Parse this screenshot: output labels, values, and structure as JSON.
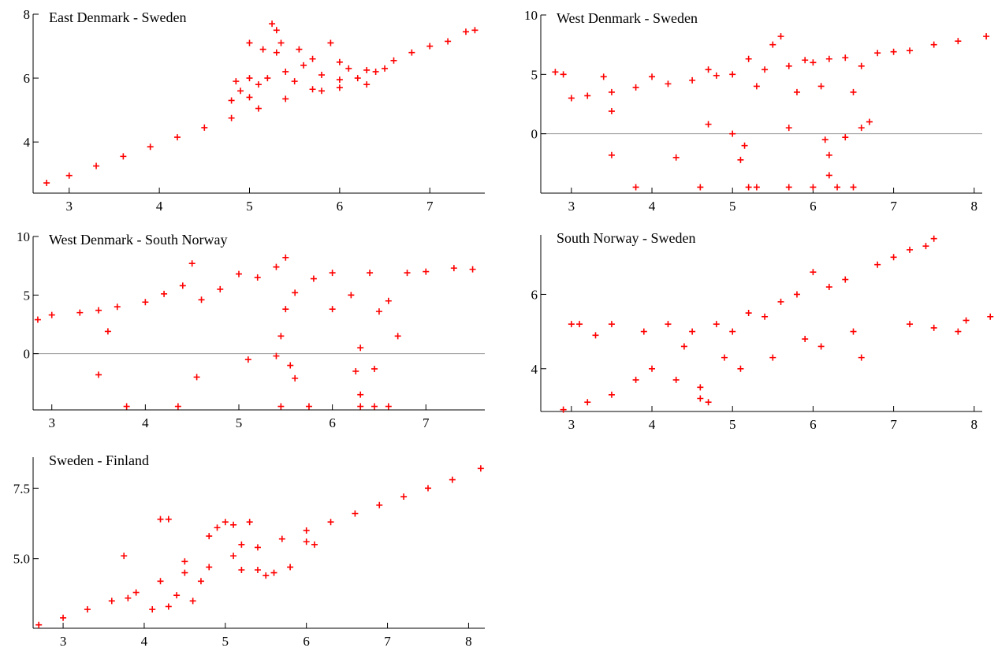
{
  "chart_data": [
    {
      "type": "scatter",
      "title": "East Denmark - Sweden",
      "color": "#ff0000",
      "x": [
        2.75,
        3.0,
        3.3,
        3.6,
        3.9,
        4.2,
        4.5,
        4.8,
        5.1,
        5.4,
        5.7,
        6.0,
        6.3,
        6.6,
        6.8,
        7.0,
        7.2,
        7.4,
        7.5,
        4.8,
        4.85,
        4.9,
        5.0,
        5.0,
        5.0,
        5.1,
        5.2,
        5.25,
        5.3,
        5.3,
        5.35,
        5.4,
        5.5,
        5.6,
        5.7,
        5.8,
        5.9,
        6.0,
        6.1,
        6.2,
        6.3,
        6.4,
        6.0,
        5.8,
        6.5,
        5.15,
        5.55
      ],
      "y": [
        2.72,
        2.95,
        3.25,
        3.55,
        3.85,
        4.15,
        4.45,
        4.75,
        5.05,
        5.35,
        5.65,
        5.95,
        6.25,
        6.55,
        6.8,
        7.0,
        7.15,
        7.45,
        7.5,
        5.3,
        5.9,
        5.6,
        6.0,
        5.4,
        7.1,
        5.8,
        6.0,
        7.7,
        7.5,
        6.8,
        7.1,
        6.2,
        5.9,
        6.4,
        6.6,
        6.1,
        7.1,
        6.5,
        6.3,
        6.0,
        5.8,
        6.2,
        5.7,
        5.6,
        6.3,
        6.9,
        6.9
      ],
      "xlim": [
        2.6,
        7.61
      ],
      "ylim": [
        2.4,
        8
      ],
      "xticks": [
        3,
        4,
        5,
        6,
        7
      ],
      "yticks": [
        4,
        6,
        8
      ]
    },
    {
      "type": "scatter",
      "title": "West Denmark - Sweden",
      "color": "#ff0000",
      "x": [
        2.8,
        2.9,
        3.0,
        3.2,
        3.4,
        3.5,
        3.8,
        4.0,
        4.2,
        4.5,
        4.7,
        4.8,
        5.0,
        5.2,
        5.3,
        5.4,
        5.5,
        5.6,
        5.7,
        5.8,
        5.9,
        6.0,
        6.1,
        6.2,
        6.4,
        6.5,
        6.6,
        6.7,
        6.8,
        7.0,
        7.2,
        7.5,
        7.8,
        8.15,
        3.5,
        4.3,
        5.15,
        5.1,
        4.7,
        5.7,
        6.15,
        6.2,
        6.4,
        3.8,
        4.6,
        5.2,
        5.3,
        5.7,
        6.0,
        6.2,
        6.3,
        6.5,
        3.5,
        5.0,
        6.6
      ],
      "y": [
        5.2,
        5.0,
        3.0,
        3.2,
        4.8,
        3.5,
        3.9,
        4.8,
        4.2,
        4.5,
        5.4,
        4.9,
        5.0,
        6.3,
        4.0,
        5.4,
        7.5,
        8.2,
        5.7,
        3.5,
        6.2,
        6.0,
        4.0,
        6.3,
        6.4,
        3.5,
        5.7,
        1.0,
        6.8,
        6.9,
        7.0,
        7.5,
        7.8,
        8.2,
        -1.8,
        -2.0,
        -1.0,
        -2.2,
        0.8,
        0.5,
        -0.5,
        -1.8,
        -0.3,
        -4.5,
        -4.5,
        -4.5,
        -4.5,
        -4.5,
        -4.5,
        -3.5,
        -4.5,
        -4.5,
        1.9,
        0.0,
        0.5
      ],
      "xlim": [
        2.62,
        8.1
      ],
      "ylim": [
        -5,
        10
      ],
      "xticks": [
        3,
        4,
        5,
        6,
        7,
        8
      ],
      "yticks": [
        0,
        5,
        10
      ],
      "reference_line": 0
    },
    {
      "type": "scatter",
      "title": "West Denmark - South Norway",
      "color": "#ff0000",
      "x": [
        2.85,
        3.0,
        3.3,
        3.5,
        3.6,
        3.7,
        4.0,
        4.2,
        4.4,
        4.5,
        4.6,
        4.8,
        5.0,
        5.2,
        5.4,
        5.5,
        5.5,
        5.6,
        5.8,
        6.0,
        6.0,
        6.2,
        6.3,
        6.4,
        6.5,
        6.6,
        6.7,
        6.8,
        7.0,
        7.3,
        7.5,
        3.5,
        4.55,
        5.1,
        5.4,
        5.45,
        5.6,
        5.55,
        6.25,
        6.3,
        6.45,
        3.8,
        4.35,
        5.45,
        5.75,
        6.3,
        6.45,
        6.6
      ],
      "y": [
        2.9,
        3.3,
        3.5,
        3.7,
        1.9,
        4.0,
        4.4,
        5.1,
        5.8,
        7.7,
        4.6,
        5.5,
        6.8,
        6.5,
        7.4,
        3.8,
        8.2,
        5.2,
        6.4,
        3.8,
        6.9,
        5.0,
        0.5,
        6.9,
        3.6,
        4.5,
        1.5,
        6.9,
        7.0,
        7.3,
        7.2,
        -1.8,
        -2.0,
        -0.5,
        -0.2,
        1.5,
        -2.1,
        -1.0,
        -1.5,
        -3.5,
        -1.3,
        -4.5,
        -4.5,
        -4.5,
        -4.5,
        -4.5,
        -4.5,
        -4.5
      ],
      "xlim": [
        2.8,
        7.63
      ],
      "ylim": [
        -4.8,
        10
      ],
      "xticks": [
        3,
        4,
        5,
        6,
        7
      ],
      "yticks": [
        0,
        5,
        10
      ],
      "reference_line": 0
    },
    {
      "type": "scatter",
      "title": "South Norway - Sweden",
      "color": "#ff0000",
      "x": [
        2.9,
        3.0,
        3.1,
        3.2,
        3.5,
        3.5,
        3.8,
        3.9,
        4.0,
        4.2,
        4.3,
        4.4,
        4.5,
        4.6,
        4.6,
        4.8,
        4.9,
        5.0,
        5.1,
        5.2,
        5.4,
        5.5,
        5.6,
        5.8,
        5.9,
        6.0,
        6.1,
        6.2,
        6.4,
        6.5,
        6.6,
        6.8,
        7.0,
        7.2,
        7.2,
        7.4,
        7.5,
        7.5,
        7.8,
        7.9,
        8.2,
        3.3,
        4.7
      ],
      "y": [
        2.9,
        5.2,
        5.2,
        3.1,
        5.2,
        3.3,
        3.7,
        5.0,
        4.0,
        5.2,
        3.7,
        4.6,
        5.0,
        3.5,
        3.2,
        5.2,
        4.3,
        5.0,
        4.0,
        5.5,
        5.4,
        4.3,
        5.8,
        6.0,
        4.8,
        6.6,
        4.6,
        6.2,
        6.4,
        5.0,
        4.3,
        6.8,
        7.0,
        5.2,
        7.2,
        7.3,
        7.5,
        5.1,
        5.0,
        5.3,
        5.4,
        4.9,
        3.1
      ],
      "xlim": [
        2.62,
        8.1
      ],
      "ylim": [
        2.85,
        7.6
      ],
      "xticks": [
        3,
        4,
        5,
        6,
        7,
        8
      ],
      "yticks": [
        4,
        6
      ]
    },
    {
      "type": "scatter",
      "title": "Sweden - Finland",
      "color": "#ff0000",
      "x": [
        2.7,
        3.0,
        3.3,
        3.6,
        3.9,
        4.2,
        4.5,
        4.8,
        5.1,
        5.4,
        5.7,
        6.0,
        6.3,
        6.6,
        6.9,
        7.2,
        7.5,
        7.8,
        8.15,
        3.75,
        4.2,
        4.3,
        3.8,
        4.1,
        4.3,
        4.5,
        4.6,
        4.8,
        4.9,
        5.0,
        5.1,
        5.2,
        5.3,
        5.4,
        5.5,
        5.6,
        5.8,
        6.0,
        6.1,
        5.2,
        4.4,
        4.7
      ],
      "y": [
        2.65,
        2.9,
        3.2,
        3.5,
        3.8,
        4.2,
        4.5,
        4.7,
        5.1,
        5.4,
        5.7,
        6.0,
        6.3,
        6.6,
        6.9,
        7.2,
        7.5,
        7.8,
        8.2,
        5.1,
        6.4,
        6.4,
        3.6,
        3.2,
        3.3,
        4.9,
        3.5,
        5.8,
        6.1,
        6.3,
        6.2,
        4.6,
        6.3,
        4.6,
        4.4,
        4.5,
        4.7,
        5.6,
        5.5,
        5.5,
        3.7,
        4.2
      ],
      "xlim": [
        2.63,
        8.2
      ],
      "ylim": [
        2.53,
        8.6
      ],
      "xticks": [
        3,
        4,
        5,
        6,
        7,
        8
      ],
      "yticks": [
        {
          "value": 5.0,
          "label": "5.0"
        },
        {
          "value": 7.5,
          "label": "7.5"
        }
      ]
    }
  ]
}
